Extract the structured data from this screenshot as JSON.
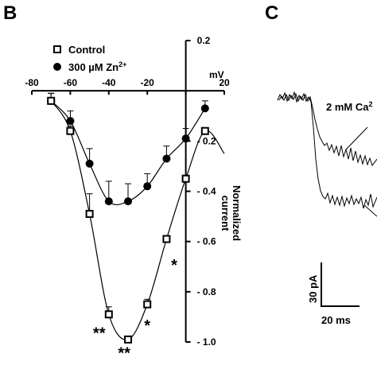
{
  "panels": {
    "left_label": "B",
    "right_label": "C"
  },
  "chart_data": {
    "type": "scatter",
    "x_axis": {
      "label": "mV",
      "range": [
        -80,
        20
      ],
      "ticks": [
        -80,
        -60,
        -40,
        -20,
        0,
        20
      ],
      "tick_labels": [
        "-80",
        "-60",
        "-40",
        "-20",
        "",
        "20"
      ]
    },
    "y_axis": {
      "label_line1": "Normalized",
      "label_line2": "current",
      "range": [
        -1.0,
        0.2
      ],
      "ticks": [
        0.2,
        -0.2,
        -0.4,
        -0.6,
        -0.8,
        -1.0
      ],
      "tick_labels": [
        "0.2",
        "- 0.2",
        "- 0.4",
        "- 0.6",
        "- 0.8",
        "- 1.0"
      ]
    },
    "legend": {
      "position": "top-left",
      "entries": [
        {
          "series": "Control",
          "html": "Control"
        },
        {
          "series": "300 µM Zn2+",
          "html": "300 µM Zn<tspan baseline-shift=\"super\" font-size=\"9\">2+</tspan>"
        }
      ]
    },
    "series": [
      {
        "name": "Control",
        "marker": "open-square",
        "x": [
          -70,
          -60,
          -50,
          -40,
          -30,
          -20,
          -10,
          0,
          10
        ],
        "y": [
          -0.04,
          -0.16,
          -0.49,
          -0.89,
          -0.99,
          -0.85,
          -0.59,
          -0.35,
          -0.16
        ],
        "err": [
          0.03,
          0.02,
          0.08,
          0.03,
          0.0,
          0.02,
          0.0,
          0.0,
          0.0
        ]
      },
      {
        "name": "300 µM Zn2+",
        "marker": "filled-circle",
        "x": [
          -70,
          -60,
          -50,
          -40,
          -30,
          -20,
          -10,
          0,
          10
        ],
        "y": [
          -0.04,
          -0.12,
          -0.29,
          -0.44,
          -0.44,
          -0.38,
          -0.27,
          -0.19,
          -0.07
        ],
        "err": [
          0.03,
          0.04,
          0.06,
          0.08,
          0.07,
          0.05,
          0.05,
          0.04,
          0.03
        ]
      }
    ],
    "annotations": [
      {
        "text": "**",
        "x": -45,
        "y": -0.96
      },
      {
        "text": "**",
        "x": -32,
        "y": -1.04
      },
      {
        "text": "*",
        "x": -20,
        "y": -0.93
      },
      {
        "text": "*",
        "x": -6,
        "y": -0.69
      }
    ]
  },
  "panel_c": {
    "label_upper": "2 mM Ca",
    "label_upper_sup": "2",
    "scale_y": "30 pA",
    "scale_x": "20 ms"
  }
}
